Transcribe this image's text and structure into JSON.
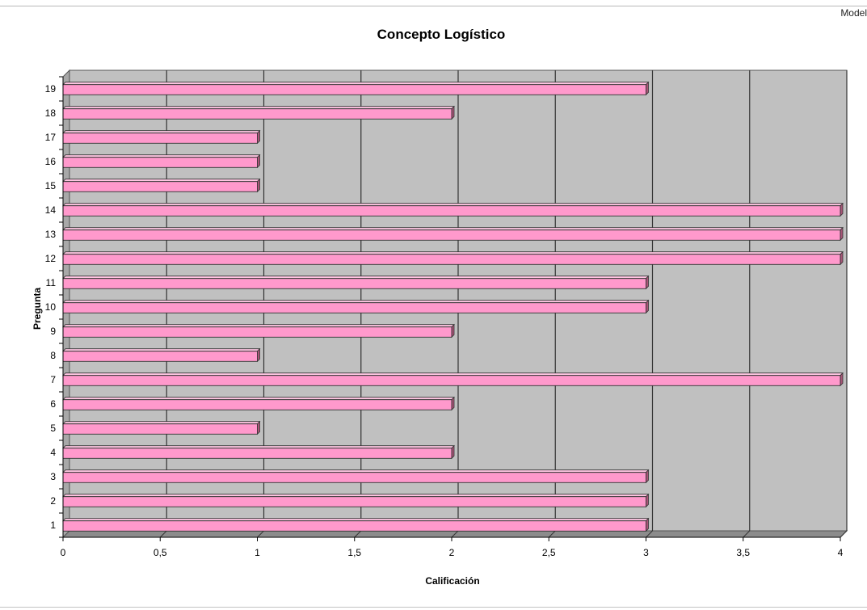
{
  "header": {
    "corner_text": "Model"
  },
  "chart_data": {
    "type": "bar",
    "orientation": "horizontal",
    "style": "3d",
    "title": "Concepto Logístico",
    "xlabel": "Calificación",
    "ylabel": "Pregunta",
    "categories": [
      "1",
      "2",
      "3",
      "4",
      "5",
      "6",
      "7",
      "8",
      "9",
      "10",
      "11",
      "12",
      "13",
      "14",
      "15",
      "16",
      "17",
      "18",
      "19"
    ],
    "values": [
      3,
      3,
      3,
      2,
      1,
      2,
      4,
      1,
      2,
      3,
      3,
      4,
      4,
      4,
      1,
      1,
      1,
      2,
      3
    ],
    "xlim": [
      0,
      4
    ],
    "x_ticks": [
      "0",
      "0,5",
      "1",
      "1,5",
      "2",
      "2,5",
      "3",
      "3,5",
      "4"
    ],
    "grid": true,
    "legend": "none",
    "colors": {
      "bar": "#ff99cc",
      "bar_shade": "#a85577",
      "plot_background": "#c0c0c0"
    }
  }
}
